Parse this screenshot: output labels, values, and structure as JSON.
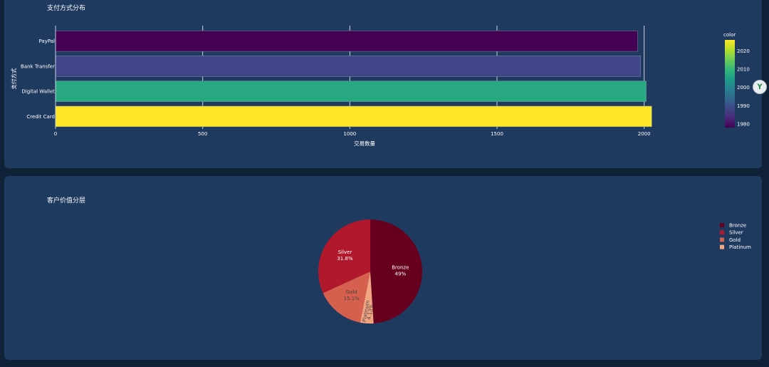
{
  "panels": {
    "bar_title": "支付方式分布",
    "pie_title": "客户价值分层"
  },
  "side_button": {
    "icon": "ꓬ",
    "icon_name": "assistant-icon"
  },
  "chart_data": [
    {
      "type": "bar",
      "orientation": "horizontal",
      "title": "支付方式分布",
      "xlabel": "交易数量",
      "ylabel": "支付方式",
      "categories": [
        "PayPal",
        "Bank Transfer",
        "Digital Wallet",
        "Credit Card"
      ],
      "values": [
        1978,
        1988,
        2007,
        2026
      ],
      "color_values": [
        1978,
        1988,
        2007,
        2026
      ],
      "xlim": [
        0,
        2100
      ],
      "xticks": [
        0,
        500,
        1000,
        1500,
        2000
      ],
      "grid": true,
      "colorbar": {
        "title": "color",
        "range": [
          1978,
          2026
        ],
        "ticks": [
          1980,
          1990,
          2000,
          2010,
          2020
        ],
        "colorscale": "viridis",
        "stops": [
          "#440154",
          "#482878",
          "#3e4989",
          "#31688e",
          "#26828e",
          "#1f9e89",
          "#35b779",
          "#6ece58",
          "#b5de2b",
          "#fde725"
        ]
      }
    },
    {
      "type": "pie",
      "title": "客户价值分层",
      "slices": [
        {
          "name": "Bronze",
          "value": 49,
          "label": "49%",
          "color": "#67001f",
          "text_color": "#ffffff"
        },
        {
          "name": "Platinum",
          "value": 4.13,
          "label": "4.13%",
          "color": "#f4a582",
          "text_color": "#444444"
        },
        {
          "name": "Gold",
          "value": 15.1,
          "label": "15.1%",
          "color": "#d6604d",
          "text_color": "#444444"
        },
        {
          "name": "Silver",
          "value": 31.8,
          "label": "31.8%",
          "color": "#b2182b",
          "text_color": "#ffffff"
        }
      ],
      "legend": [
        "Bronze",
        "Silver",
        "Gold",
        "Platinum"
      ],
      "legend_position": "right"
    }
  ]
}
